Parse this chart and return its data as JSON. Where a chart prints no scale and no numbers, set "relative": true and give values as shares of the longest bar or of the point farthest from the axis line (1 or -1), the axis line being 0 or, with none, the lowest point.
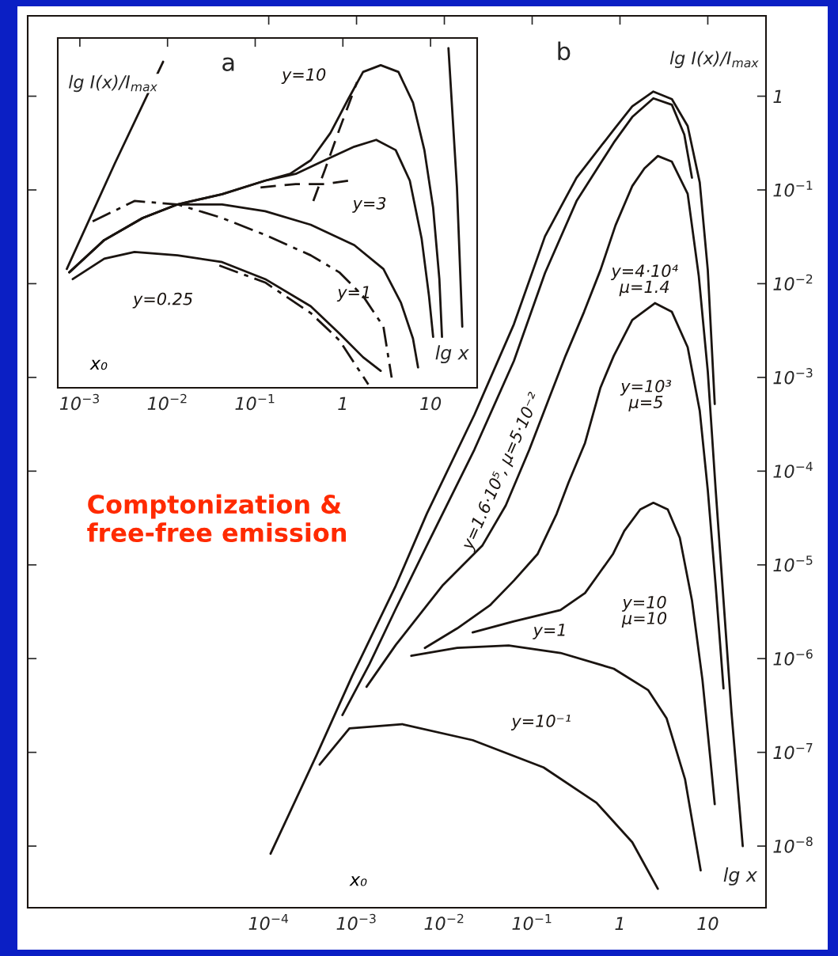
{
  "chart_data": [
    {
      "type": "line",
      "title": "a",
      "xlabel": "lg x",
      "ylabel": "lg I(x)/I$_{max}$",
      "annotations": [
        "x₀"
      ],
      "log": "x",
      "relative": true,
      "xlim": [
        0.00056,
        34
      ],
      "xticks": [
        {
          "value": 0.001,
          "label": "10$^{−3}$"
        },
        {
          "value": 0.01,
          "label": "10$^{−2}$"
        },
        {
          "value": 0.1,
          "label": "10$^{−1}$"
        },
        1,
        10
      ],
      "series": [
        {
          "color": "#1a1410",
          "line_style": "solid",
          "x": [
            0.00071,
            0.0025,
            0.0089
          ],
          "values": [
            0.35,
            0.66,
            0.96
          ]
        },
        {
          "color": "#1a1410",
          "line_style": "solid",
          "x": [
            16,
            20,
            23
          ],
          "values": [
            1.0,
            0.59,
            0.18
          ]
        },
        {
          "name": "y=10",
          "color": "#1a1410",
          "line_style": "solid",
          "x": [
            0.00076,
            0.0019,
            0.0052,
            0.013,
            0.042,
            0.13,
            0.25,
            0.43,
            0.72,
            1.15,
            1.7,
            2.7,
            4.3,
            6.3,
            8.5,
            10.7,
            12.6,
            13.5
          ],
          "values": [
            0.34,
            0.435,
            0.5,
            0.54,
            0.57,
            0.61,
            0.63,
            0.67,
            0.75,
            0.85,
            0.93,
            0.95,
            0.93,
            0.84,
            0.7,
            0.53,
            0.32,
            0.15
          ]
        },
        {
          "name": "y=3",
          "color": "#1a1410",
          "line_style": "solid",
          "x": [
            0.00076,
            0.0019,
            0.0052,
            0.013,
            0.042,
            0.13,
            0.29,
            0.62,
            1.35,
            2.4,
            4.0,
            5.8,
            7.9,
            9.6,
            10.7
          ],
          "values": [
            0.34,
            0.435,
            0.5,
            0.54,
            0.57,
            0.61,
            0.63,
            0.67,
            0.71,
            0.73,
            0.7,
            0.61,
            0.44,
            0.27,
            0.15
          ]
        },
        {
          "name": "y=1",
          "color": "#1a1410",
          "line_style": "solid",
          "x": [
            0.00076,
            0.0019,
            0.0052,
            0.013,
            0.042,
            0.13,
            0.43,
            1.35,
            2.9,
            4.6,
            6.3,
            7.2
          ],
          "values": [
            0.34,
            0.435,
            0.5,
            0.54,
            0.54,
            0.52,
            0.48,
            0.42,
            0.35,
            0.25,
            0.145,
            0.06
          ]
        },
        {
          "name": "y=0.25",
          "color": "#1a1410",
          "line_style": "solid",
          "x": [
            0.00083,
            0.0019,
            0.0042,
            0.013,
            0.042,
            0.13,
            0.43,
            0.91,
            1.7,
            2.7
          ],
          "values": [
            0.32,
            0.38,
            0.4,
            0.39,
            0.37,
            0.32,
            0.24,
            0.16,
            0.09,
            0.05
          ]
        },
        {
          "color": "#1a1410",
          "line_style": "dashed",
          "x": [
            0.46,
            0.62,
            0.91,
            1.45
          ],
          "values": [
            0.55,
            0.64,
            0.76,
            0.9
          ]
        },
        {
          "color": "#1a1410",
          "line_style": "dashed",
          "x": [
            0.115,
            0.29,
            0.62,
            1.15
          ],
          "values": [
            0.59,
            0.6,
            0.6,
            0.61
          ]
        },
        {
          "color": "#1a1410",
          "line_style": "dashdot",
          "x": [
            0.0014,
            0.0042,
            0.013,
            0.042,
            0.13,
            0.43,
            0.91,
            1.7,
            2.9,
            3.6
          ],
          "values": [
            0.49,
            0.55,
            0.54,
            0.5,
            0.45,
            0.39,
            0.34,
            0.27,
            0.18,
            0.03
          ]
        },
        {
          "color": "#1a1410",
          "line_style": "dashdot",
          "x": [
            0.039,
            0.13,
            0.43,
            0.91,
            1.95
          ],
          "values": [
            0.36,
            0.31,
            0.22,
            0.14,
            0.01
          ]
        }
      ]
    },
    {
      "type": "line",
      "title": "b",
      "xlabel": "lg x",
      "ylabel": "lg I(x)/I$_{max}$",
      "annotations": [
        "x₀",
        "Comptonization &\nfree-free emission"
      ],
      "log": "xy",
      "xlim": [
        1.8e-07,
        46
      ],
      "ylim": [
        2.2e-09,
        7.2
      ],
      "xticks": [
        {
          "value": 0.0001,
          "label": "10$^{−4}$"
        },
        {
          "value": 0.001,
          "label": "10$^{−3}$"
        },
        {
          "value": 0.01,
          "label": "10$^{−2}$"
        },
        {
          "value": 0.1,
          "label": "10$^{−1}$"
        },
        1,
        10
      ],
      "yticks": [
        1,
        {
          "value": 0.1,
          "label": "10$^{−1}$"
        },
        {
          "value": 0.01,
          "label": "10$^{−2}$"
        },
        {
          "value": 0.001,
          "label": "10$^{−3}$"
        },
        {
          "value": 0.0001,
          "label": "10$^{−4}$"
        },
        {
          "value": 1e-05,
          "label": "10$^{−5}$"
        },
        {
          "value": 1e-06,
          "label": "10$^{−6}$"
        },
        {
          "value": 1e-07,
          "label": "10$^{−7}$"
        },
        {
          "value": 1e-08,
          "label": "10$^{−8}$"
        }
      ],
      "series": [
        {
          "color": "#1a1410",
          "line_style": "solid",
          "x": [
            0.000105,
            0.00035,
            0.00089,
            0.0028,
            0.0063,
            0.022,
            0.062,
            0.14,
            0.32,
            0.85,
            1.38,
            2.4,
            3.9,
            5.9,
            8.1,
            10,
            12.0
          ],
          "values": [
            8.3e-09,
            9.3e-08,
            6.5e-07,
            6e-06,
            3.5e-05,
            0.0004,
            0.0037,
            0.032,
            0.135,
            0.44,
            0.78,
            1.12,
            0.93,
            0.48,
            0.12,
            0.014,
            0.00052
          ]
        },
        {
          "name": "y=1.6·10⁵, μ=5·10⁻²",
          "color": "#1a1410",
          "line_style": "solid",
          "x": [
            0.00069,
            0.0014,
            0.0028,
            0.0063,
            0.022,
            0.062,
            0.14,
            0.32,
            0.85,
            1.38,
            2.4,
            3.9,
            5.4,
            6.6
          ],
          "values": [
            2.5e-07,
            8.7e-07,
            3.4e-06,
            1.6e-05,
            0.00017,
            0.0015,
            0.013,
            0.076,
            0.32,
            0.6,
            0.95,
            0.81,
            0.39,
            0.135
          ]
        },
        {
          "name": "y=4·10⁴\nμ=1.4",
          "color": "#1a1410",
          "line_style": "solid",
          "x": [
            0.0013,
            0.0028,
            0.0095,
            0.027,
            0.05,
            0.093,
            0.155,
            0.24,
            0.39,
            0.6,
            0.89,
            1.38,
            1.9,
            2.7,
            3.9,
            5.9,
            7.9,
            10,
            12.3,
            15.1,
            18.6,
            25
          ],
          "values": [
            5e-07,
            1.4e-06,
            6e-06,
            1.6e-05,
            4.3e-05,
            0.00017,
            0.00059,
            0.0017,
            0.005,
            0.014,
            0.042,
            0.11,
            0.17,
            0.23,
            0.2,
            0.091,
            0.012,
            0.00115,
            6.3e-05,
            4.2e-06,
            2.7e-07,
            1e-08
          ]
        },
        {
          "name": "y=10³\nμ=5",
          "color": "#1a1410",
          "line_style": "solid",
          "x": [
            0.006,
            0.014,
            0.033,
            0.062,
            0.115,
            0.19,
            0.26,
            0.4,
            0.6,
            0.85,
            1.38,
            2.5,
            3.9,
            5.9,
            8.1,
            10,
            12.3,
            15.1
          ],
          "values": [
            1.3e-06,
            2.1e-06,
            3.7e-06,
            6.8e-06,
            1.3e-05,
            3.5e-05,
            7.6e-05,
            0.0002,
            0.00078,
            0.0017,
            0.0041,
            0.0062,
            0.005,
            0.0021,
            0.00044,
            6.3e-05,
            6e-06,
            4.8e-07
          ]
        },
        {
          "name": "y=10\nμ=10",
          "color": "#1a1410",
          "line_style": "solid",
          "x": [
            0.021,
            0.062,
            0.21,
            0.4,
            0.54,
            0.83,
            1.12,
            1.7,
            2.4,
            3.5,
            4.8,
            6.6,
            8.7,
            10.7,
            12.0
          ],
          "values": [
            1.9e-06,
            2.5e-06,
            3.3e-06,
            5e-06,
            7.4e-06,
            1.3e-05,
            2.3e-05,
            3.9e-05,
            4.6e-05,
            3.9e-05,
            1.95e-05,
            4.2e-06,
            5.9e-07,
            8.5e-08,
            2.8e-08
          ]
        },
        {
          "name": "y=1",
          "color": "#1a1410",
          "line_style": "solid",
          "x": [
            0.0042,
            0.014,
            0.054,
            0.21,
            0.85,
            2.1,
            3.4,
            5.5,
            8.3
          ],
          "values": [
            1.07e-06,
            1.3e-06,
            1.38e-06,
            1.15e-06,
            7.8e-07,
            4.6e-07,
            2.3e-07,
            5.2e-08,
            5.5e-09
          ]
        },
        {
          "name": "y=10⁻¹",
          "color": "#1a1410",
          "line_style": "solid",
          "x": [
            0.00038,
            0.00083,
            0.0033,
            0.021,
            0.135,
            0.54,
            1.38,
            2.7
          ],
          "values": [
            7.4e-08,
            1.8e-07,
            2e-07,
            1.35e-07,
            6.9e-08,
            2.9e-08,
            1.1e-08,
            3.5e-09
          ]
        }
      ]
    }
  ]
}
